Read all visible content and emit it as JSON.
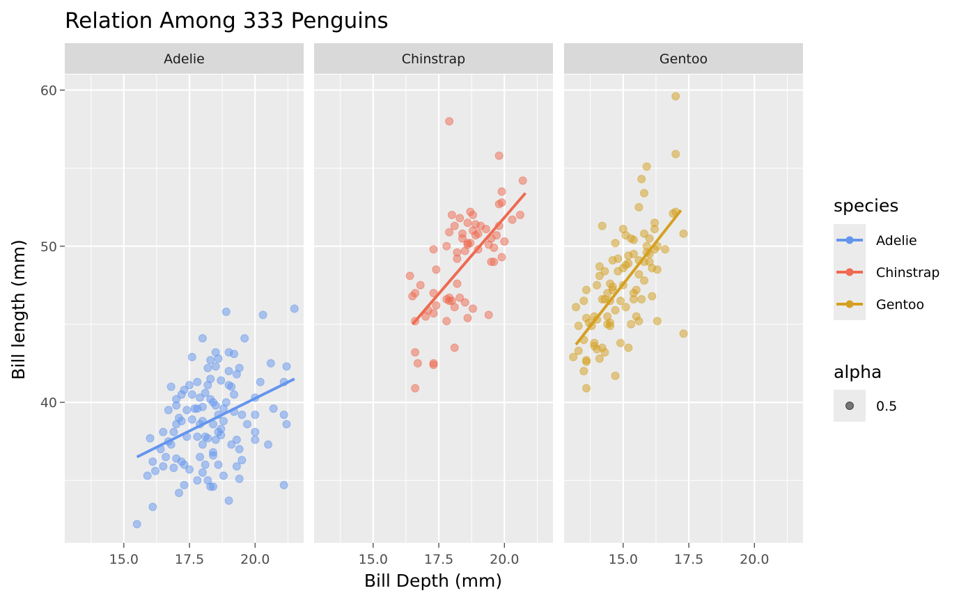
{
  "chart_data": {
    "type": "scatter",
    "title": "Relation Among 333 Penguins",
    "xlabel": "Bill Depth (mm)",
    "ylabel": "Bill length (mm)",
    "xlim": [
      12.75,
      21.85
    ],
    "ylim": [
      31.0,
      61.0
    ],
    "x_ticks": [
      15.0,
      17.5,
      20.0
    ],
    "x_tick_labels": [
      "15.0",
      "17.5",
      "20.0"
    ],
    "y_ticks": [
      40,
      50,
      60
    ],
    "y_tick_labels": [
      "40",
      "50",
      "60"
    ],
    "grid": true,
    "facets": [
      "Adelie",
      "Chinstrap",
      "Gentoo"
    ],
    "colors": {
      "Adelie": "#6495ed",
      "Chinstrap": "#ee6a50",
      "Gentoo": "#d4a020",
      "panel": "#ebebeb",
      "strip": "#d9d9d9"
    },
    "legend": {
      "title": "species",
      "entries": [
        "Adelie",
        "Chinstrap",
        "Gentoo"
      ],
      "alpha_title": "alpha",
      "alpha_label": "0.5",
      "position": "right"
    },
    "series": [
      {
        "name": "Adelie",
        "fit": [
          [
            15.5,
            36.5
          ],
          [
            21.5,
            41.5
          ]
        ],
        "points": [
          [
            15.5,
            32.2
          ],
          [
            16.1,
            33.3
          ],
          [
            15.9,
            35.3
          ],
          [
            16.2,
            35.6
          ],
          [
            16.5,
            35.9
          ],
          [
            16.1,
            36.2
          ],
          [
            16.6,
            36.5
          ],
          [
            16.9,
            35.8
          ],
          [
            17.0,
            36.4
          ],
          [
            17.2,
            36.2
          ],
          [
            17.1,
            34.2
          ],
          [
            17.3,
            34.7
          ],
          [
            16.0,
            37.7
          ],
          [
            16.4,
            37.0
          ],
          [
            16.8,
            37.3
          ],
          [
            16.9,
            38.1
          ],
          [
            17.0,
            38.6
          ],
          [
            17.1,
            39.0
          ],
          [
            17.2,
            38.8
          ],
          [
            16.5,
            38.1
          ],
          [
            16.7,
            39.5
          ],
          [
            17.0,
            40.2
          ],
          [
            17.2,
            40.5
          ],
          [
            17.3,
            40.8
          ],
          [
            16.8,
            41.0
          ],
          [
            17.5,
            41.1
          ],
          [
            17.6,
            42.9
          ],
          [
            17.4,
            39.5
          ],
          [
            17.6,
            38.9
          ],
          [
            17.7,
            39.6
          ],
          [
            17.8,
            37.8
          ],
          [
            17.9,
            38.6
          ],
          [
            18.0,
            38.8
          ],
          [
            17.9,
            36.5
          ],
          [
            18.0,
            37.3
          ],
          [
            18.1,
            36.0
          ],
          [
            18.2,
            35.0
          ],
          [
            18.3,
            34.6
          ],
          [
            18.4,
            36.6
          ],
          [
            18.5,
            37.6
          ],
          [
            18.0,
            39.7
          ],
          [
            18.1,
            40.6
          ],
          [
            18.2,
            41.1
          ],
          [
            18.3,
            41.5
          ],
          [
            18.4,
            40.0
          ],
          [
            18.5,
            42.3
          ],
          [
            18.6,
            42.8
          ],
          [
            18.5,
            43.2
          ],
          [
            18.0,
            44.1
          ],
          [
            18.3,
            42.7
          ],
          [
            18.6,
            39.2
          ],
          [
            18.7,
            38.3
          ],
          [
            18.8,
            39.6
          ],
          [
            18.9,
            40.0
          ],
          [
            19.0,
            41.1
          ],
          [
            19.1,
            41.0
          ],
          [
            19.2,
            40.5
          ],
          [
            18.9,
            45.8
          ],
          [
            19.0,
            43.2
          ],
          [
            19.2,
            43.1
          ],
          [
            19.3,
            41.8
          ],
          [
            19.4,
            42.2
          ],
          [
            19.6,
            44.1
          ],
          [
            19.5,
            39.2
          ],
          [
            19.7,
            38.6
          ],
          [
            19.3,
            37.6
          ],
          [
            19.4,
            37.0
          ],
          [
            19.5,
            36.3
          ],
          [
            19.3,
            35.9
          ],
          [
            19.4,
            35.1
          ],
          [
            19.0,
            33.7
          ],
          [
            18.8,
            35.3
          ],
          [
            18.6,
            36.0
          ],
          [
            20.0,
            39.2
          ],
          [
            20.0,
            40.3
          ],
          [
            20.2,
            41.3
          ],
          [
            20.3,
            45.6
          ],
          [
            20.6,
            42.5
          ],
          [
            21.1,
            41.3
          ],
          [
            21.2,
            42.3
          ],
          [
            21.5,
            46.0
          ],
          [
            20.7,
            39.6
          ],
          [
            21.1,
            39.2
          ],
          [
            21.2,
            38.6
          ],
          [
            20.5,
            37.3
          ],
          [
            20.0,
            38.1
          ],
          [
            20.0,
            37.6
          ],
          [
            21.1,
            34.7
          ],
          [
            18.1,
            37.8
          ],
          [
            18.4,
            38.6
          ],
          [
            17.8,
            39.6
          ],
          [
            17.9,
            40.3
          ],
          [
            18.7,
            37.9
          ],
          [
            18.6,
            38.1
          ],
          [
            19.1,
            37.3
          ],
          [
            18.4,
            36.8
          ],
          [
            17.5,
            35.7
          ],
          [
            17.8,
            35.0
          ],
          [
            17.3,
            36.0
          ],
          [
            18.2,
            37.7
          ],
          [
            18.0,
            35.5
          ],
          [
            18.3,
            40.2
          ],
          [
            18.5,
            39.8
          ],
          [
            18.7,
            41.4
          ],
          [
            19.0,
            42.0
          ],
          [
            18.2,
            42.2
          ],
          [
            17.0,
            39.8
          ],
          [
            16.7,
            37.5
          ],
          [
            17.4,
            37.8
          ],
          [
            17.6,
            40.5
          ],
          [
            17.8,
            41.3
          ],
          [
            18.8,
            38.8
          ],
          [
            19.2,
            39.4
          ],
          [
            18.4,
            34.6
          ]
        ]
      },
      {
        "name": "Chinstrap",
        "fit": [
          [
            16.5,
            45.0
          ],
          [
            20.8,
            53.4
          ]
        ],
        "points": [
          [
            16.4,
            48.1
          ],
          [
            16.5,
            46.8
          ],
          [
            16.6,
            47.0
          ],
          [
            16.6,
            45.2
          ],
          [
            16.8,
            47.5
          ],
          [
            17.0,
            45.5
          ],
          [
            17.1,
            45.9
          ],
          [
            17.3,
            45.7
          ],
          [
            17.3,
            47.0
          ],
          [
            17.4,
            46.2
          ],
          [
            17.4,
            48.5
          ],
          [
            17.3,
            49.8
          ],
          [
            17.8,
            50.0
          ],
          [
            17.9,
            50.9
          ],
          [
            18.1,
            51.3
          ],
          [
            18.0,
            52.0
          ],
          [
            17.9,
            46.5
          ],
          [
            17.9,
            46.7
          ],
          [
            17.8,
            45.2
          ],
          [
            18.0,
            46.5
          ],
          [
            18.2,
            47.6
          ],
          [
            18.1,
            46.1
          ],
          [
            18.3,
            46.7
          ],
          [
            18.2,
            49.2
          ],
          [
            18.2,
            49.6
          ],
          [
            18.4,
            50.5
          ],
          [
            18.4,
            50.8
          ],
          [
            18.5,
            49.7
          ],
          [
            18.6,
            50.2
          ],
          [
            18.6,
            51.5
          ],
          [
            18.7,
            52.2
          ],
          [
            18.8,
            52.0
          ],
          [
            18.9,
            51.4
          ],
          [
            18.8,
            51.0
          ],
          [
            18.9,
            50.7
          ],
          [
            19.0,
            50.8
          ],
          [
            19.1,
            51.3
          ],
          [
            19.0,
            49.8
          ],
          [
            18.5,
            46.4
          ],
          [
            18.6,
            45.4
          ],
          [
            18.8,
            46.0
          ],
          [
            19.4,
            45.6
          ],
          [
            19.5,
            49.0
          ],
          [
            19.6,
            49.0
          ],
          [
            19.4,
            50.1
          ],
          [
            19.5,
            50.5
          ],
          [
            19.7,
            50.7
          ],
          [
            19.8,
            51.3
          ],
          [
            19.8,
            52.7
          ],
          [
            19.9,
            52.8
          ],
          [
            19.9,
            53.5
          ],
          [
            19.8,
            55.8
          ],
          [
            20.0,
            50.3
          ],
          [
            19.9,
            49.3
          ],
          [
            20.3,
            51.7
          ],
          [
            20.6,
            52.0
          ],
          [
            20.7,
            54.2
          ],
          [
            17.9,
            58.0
          ],
          [
            16.6,
            43.2
          ],
          [
            16.7,
            42.5
          ],
          [
            17.3,
            42.5
          ],
          [
            17.3,
            42.4
          ],
          [
            16.6,
            40.9
          ],
          [
            18.1,
            43.5
          ],
          [
            19.3,
            51.1
          ],
          [
            18.7,
            50.2
          ],
          [
            18.3,
            51.8
          ],
          [
            17.8,
            46.6
          ],
          [
            18.6,
            50.1
          ],
          [
            19.6,
            49.9
          ]
        ]
      },
      {
        "name": "Gentoo",
        "fit": [
          [
            13.2,
            43.7
          ],
          [
            17.2,
            52.3
          ]
        ],
        "points": [
          [
            13.1,
            42.9
          ],
          [
            13.3,
            43.3
          ],
          [
            13.2,
            46.1
          ],
          [
            13.3,
            44.9
          ],
          [
            13.5,
            44.0
          ],
          [
            13.5,
            46.5
          ],
          [
            13.6,
            47.2
          ],
          [
            13.6,
            45.4
          ],
          [
            13.7,
            45.1
          ],
          [
            13.8,
            44.9
          ],
          [
            13.6,
            42.7
          ],
          [
            13.6,
            42.6
          ],
          [
            13.5,
            42.0
          ],
          [
            13.6,
            40.9
          ],
          [
            13.9,
            43.6
          ],
          [
            13.9,
            43.8
          ],
          [
            14.1,
            42.8
          ],
          [
            14.0,
            43.4
          ],
          [
            14.2,
            43.5
          ],
          [
            14.3,
            43.2
          ],
          [
            14.0,
            45.3
          ],
          [
            14.0,
            47.5
          ],
          [
            14.1,
            48.1
          ],
          [
            14.1,
            48.7
          ],
          [
            14.2,
            46.6
          ],
          [
            14.3,
            46.6
          ],
          [
            14.4,
            45.5
          ],
          [
            14.5,
            45.1
          ],
          [
            14.5,
            46.5
          ],
          [
            14.5,
            47.6
          ],
          [
            14.6,
            47.2
          ],
          [
            14.6,
            49.1
          ],
          [
            14.8,
            48.4
          ],
          [
            14.7,
            45.9
          ],
          [
            14.9,
            46.5
          ],
          [
            15.0,
            47.5
          ],
          [
            15.0,
            48.6
          ],
          [
            15.1,
            48.8
          ],
          [
            15.2,
            49.4
          ],
          [
            15.1,
            50.7
          ],
          [
            15.3,
            50.5
          ],
          [
            15.4,
            49.5
          ],
          [
            15.0,
            51.1
          ],
          [
            14.7,
            50.2
          ],
          [
            14.2,
            51.3
          ],
          [
            14.3,
            48.4
          ],
          [
            14.5,
            44.9
          ],
          [
            14.4,
            45.0
          ],
          [
            14.7,
            41.7
          ],
          [
            14.9,
            43.8
          ],
          [
            15.2,
            43.5
          ],
          [
            15.3,
            45.0
          ],
          [
            15.5,
            45.5
          ],
          [
            15.6,
            45.2
          ],
          [
            15.7,
            46.6
          ],
          [
            15.8,
            47.8
          ],
          [
            15.5,
            47.2
          ],
          [
            15.4,
            47.0
          ],
          [
            15.6,
            48.2
          ],
          [
            15.8,
            49.0
          ],
          [
            15.9,
            49.6
          ],
          [
            15.9,
            50.0
          ],
          [
            16.0,
            49.5
          ],
          [
            16.0,
            50.5
          ],
          [
            16.1,
            48.6
          ],
          [
            16.2,
            49.8
          ],
          [
            16.2,
            51.5
          ],
          [
            16.3,
            48.5
          ],
          [
            16.3,
            45.2
          ],
          [
            16.1,
            46.8
          ],
          [
            15.9,
            55.1
          ],
          [
            15.7,
            54.3
          ],
          [
            15.8,
            53.4
          ],
          [
            15.6,
            52.5
          ],
          [
            16.2,
            51.1
          ],
          [
            16.3,
            50.0
          ],
          [
            16.6,
            49.8
          ],
          [
            16.9,
            52.1
          ],
          [
            17.0,
            52.2
          ],
          [
            17.3,
            50.8
          ],
          [
            17.3,
            44.4
          ],
          [
            17.0,
            55.9
          ],
          [
            17.0,
            59.6
          ],
          [
            13.9,
            45.5
          ],
          [
            14.4,
            47.0
          ],
          [
            14.6,
            47.4
          ],
          [
            15.1,
            46.1
          ],
          [
            15.2,
            48.9
          ],
          [
            14.8,
            49.2
          ],
          [
            15.4,
            46.6
          ],
          [
            15.6,
            49.1
          ],
          [
            15.8,
            50.8
          ],
          [
            16.0,
            49.0
          ],
          [
            15.4,
            50.4
          ]
        ]
      }
    ]
  }
}
